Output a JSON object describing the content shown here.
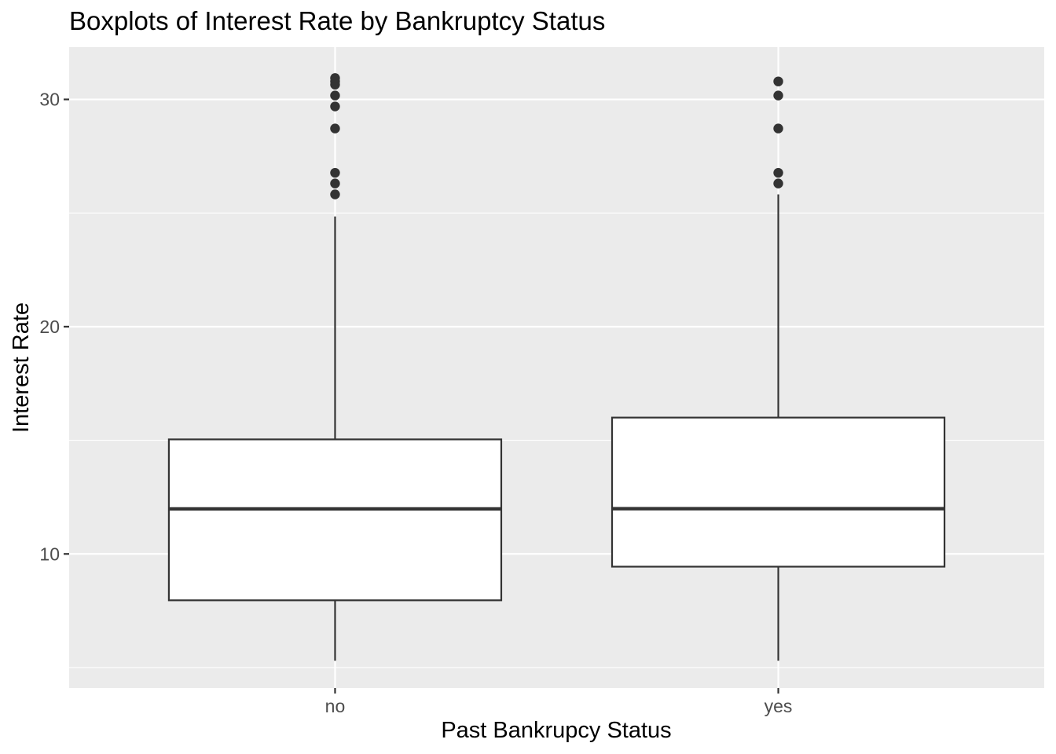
{
  "chart_data": {
    "type": "boxplot",
    "title": "Boxplots of Interest Rate by Bankruptcy Status",
    "xlabel": "Past Bankrupcy Status",
    "ylabel": "Interest Rate",
    "categories": [
      "no",
      "yes"
    ],
    "ylim": [
      4.1,
      32.3
    ],
    "yticks": [
      10,
      20,
      30
    ],
    "grid": true,
    "legend": "none",
    "colors": {
      "panel": "#EBEBEB",
      "grid": "#FFFFFF",
      "box_fill": "#FFFFFF",
      "box_stroke": "#333333",
      "outlier": "#333333",
      "tick": "#333333",
      "tick_label": "#4D4D4D"
    },
    "boxes": [
      {
        "category": "no",
        "whisker_low": 5.3,
        "q1": 7.96,
        "median": 11.98,
        "q3": 15.04,
        "whisker_high": 24.85,
        "outliers": [
          25.82,
          26.3,
          26.77,
          28.72,
          29.69,
          30.17,
          30.65,
          30.79,
          30.94
        ]
      },
      {
        "category": "yes",
        "whisker_low": 5.3,
        "q1": 9.44,
        "median": 11.99,
        "q3": 16.0,
        "whisker_high": 25.82,
        "outliers": [
          26.3,
          26.77,
          28.72,
          30.17,
          30.79
        ]
      }
    ]
  }
}
